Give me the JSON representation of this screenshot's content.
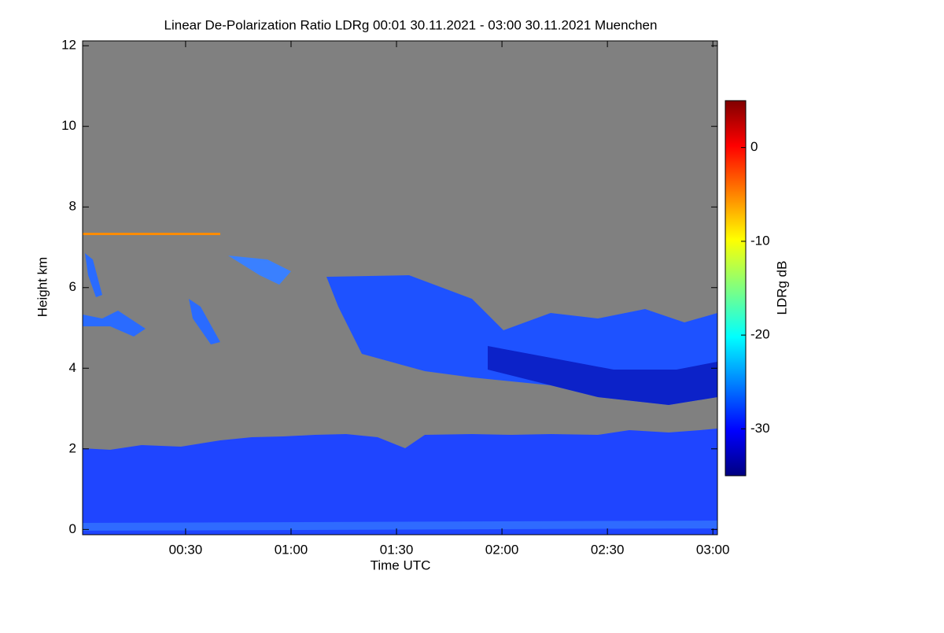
{
  "chart_data": {
    "type": "heatmap",
    "title": "Linear De-Polarization Ratio LDRg   00:01 30.11.2021 - 03:00 30.11.2021 Muenchen",
    "x_label": "Time UTC",
    "y_label": "Height km",
    "colorbar_label": "LDRg dB",
    "xlim": [
      0.7,
      181.3
    ],
    "xticks": [
      {
        "value": 30,
        "label": "00:30"
      },
      {
        "value": 60,
        "label": "01:00"
      },
      {
        "value": 90,
        "label": "01:30"
      },
      {
        "value": 120,
        "label": "02:00"
      },
      {
        "value": 150,
        "label": "02:30"
      },
      {
        "value": 180,
        "label": "03:00"
      }
    ],
    "ylim": [
      -0.13,
      12.12
    ],
    "yticks": [
      0,
      2,
      4,
      6,
      8,
      10,
      12
    ],
    "clim": [
      -35,
      5
    ],
    "cticks": [
      0,
      -10,
      -20,
      -30
    ],
    "colormap": "jet",
    "background": "#808080"
  }
}
